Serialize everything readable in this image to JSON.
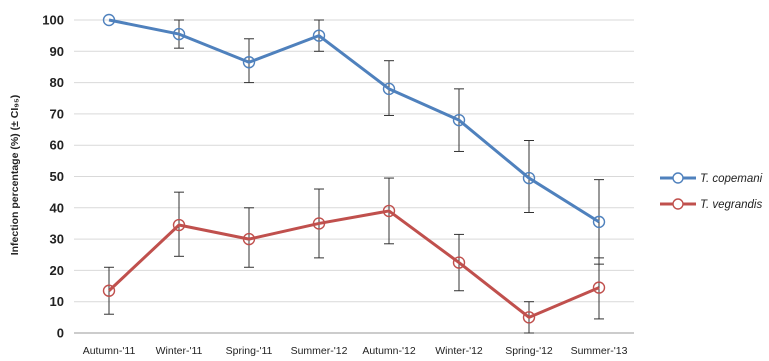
{
  "chart_data": {
    "type": "line",
    "ylabel": "Infection percentage (%) (± CI₉₅)",
    "xlabel": "",
    "title": "",
    "ylim": [
      0,
      100
    ],
    "yticks": [
      0,
      10,
      20,
      30,
      40,
      50,
      60,
      70,
      80,
      90,
      100
    ],
    "grid": "horizontal",
    "legend_position": "right",
    "categories": [
      "Autumn-'11",
      "Winter-'11",
      "Spring-'11",
      "Summer-'12",
      "Autumn-'12",
      "Winter-'12",
      "Spring-'12",
      "Summer-'13"
    ],
    "series": [
      {
        "name": "T. copemani",
        "color": "#4f81bd",
        "values": [
          100,
          95.5,
          86.5,
          95,
          78,
          68,
          49.5,
          35.5
        ],
        "ci_low": [
          null,
          91,
          80,
          90,
          69.5,
          58,
          38.5,
          22
        ],
        "ci_high": [
          null,
          100,
          94,
          100,
          87,
          78,
          61.5,
          49
        ]
      },
      {
        "name": "T. vegrandis",
        "color": "#c0504d",
        "values": [
          13.5,
          34.5,
          30,
          35,
          39,
          22.5,
          5,
          14.5
        ],
        "ci_low": [
          6,
          24.5,
          21,
          24,
          28.5,
          13.5,
          0,
          4.5
        ],
        "ci_high": [
          21,
          45,
          40,
          46,
          49.5,
          31.5,
          10,
          24
        ]
      }
    ]
  }
}
